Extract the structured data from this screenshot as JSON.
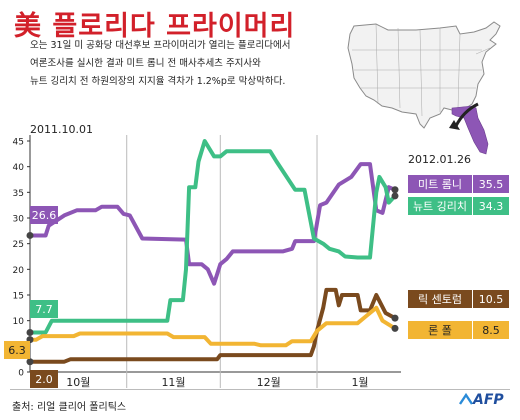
{
  "header": {
    "title": "美 플로리다 프라이머리"
  },
  "description": {
    "lines": [
      "오는 31일 미 공화당 대선후보 프라이머리가 열리는 플로리다에서",
      "여론조사를 실시한 결과 미트 롬니 전 매사추세츠 주지사와",
      "뉴트 깅리치 전 하원의장의 지지율 격차가 1.2%p로 막상막하다."
    ]
  },
  "map": {
    "icon": "us-map-florida-highlighted",
    "highlight_color": "#8d56b5",
    "arrow_icon": "curved-arrow-icon"
  },
  "footer": {
    "source": "출처: 리얼 클리어 폴리틱스",
    "logo": "AFP"
  },
  "colors": {
    "romney": "#8d56b5",
    "gingrich": "#3ebf86",
    "santorum": "#7a4a1e",
    "paul": "#f2b533",
    "grid": "#bbbbbb"
  },
  "chart_data": {
    "type": "line",
    "title": "",
    "xlabel": "",
    "ylabel": "",
    "ylim": [
      0,
      45
    ],
    "yticks": [
      "0",
      "5",
      "10",
      "15",
      "20",
      "25",
      "30",
      "35",
      "40",
      "45"
    ],
    "x_range": [
      "2011-10-01",
      "2012-01-26"
    ],
    "x_month_labels": [
      "10월",
      "11월",
      "12월",
      "1월"
    ],
    "start_date_label": "2011.10.01",
    "end_date_label": "2012.01.26",
    "grid": "vertical month separators",
    "legend": "end labels on right",
    "series": [
      {
        "name": "미트 롬니",
        "color_key": "romney",
        "start_label": "26.6",
        "end_label": "35.5",
        "points": [
          [
            "2011-10-01",
            26.6
          ],
          [
            "2011-10-06",
            26.6
          ],
          [
            "2011-10-07",
            28.5
          ],
          [
            "2011-10-12",
            30.5
          ],
          [
            "2011-10-16",
            31.5
          ],
          [
            "2011-10-22",
            31.5
          ],
          [
            "2011-10-24",
            32.2
          ],
          [
            "2011-10-29",
            32.2
          ],
          [
            "2011-10-31",
            30.8
          ],
          [
            "2011-11-02",
            30.5
          ],
          [
            "2011-11-06",
            26.0
          ],
          [
            "2011-11-20",
            25.8
          ],
          [
            "2011-11-21",
            21.0
          ],
          [
            "2011-11-25",
            21.0
          ],
          [
            "2011-11-27",
            20.0
          ],
          [
            "2011-11-29",
            17.2
          ],
          [
            "2011-12-01",
            21.0
          ],
          [
            "2011-12-03",
            22.0
          ],
          [
            "2011-12-05",
            23.5
          ],
          [
            "2011-12-11",
            23.5
          ],
          [
            "2011-12-21",
            23.5
          ],
          [
            "2011-12-24",
            24.0
          ],
          [
            "2011-12-25",
            25.5
          ],
          [
            "2011-12-31",
            25.5
          ],
          [
            "2012-01-02",
            32.5
          ],
          [
            "2012-01-04",
            33.0
          ],
          [
            "2012-01-08",
            36.5
          ],
          [
            "2012-01-12",
            38.0
          ],
          [
            "2012-01-15",
            40.5
          ],
          [
            "2012-01-18",
            40.5
          ],
          [
            "2012-01-20",
            31.5
          ],
          [
            "2012-01-22",
            31.0
          ],
          [
            "2012-01-24",
            36.0
          ],
          [
            "2012-01-26",
            35.5
          ]
        ]
      },
      {
        "name": "뉴트 깅리치",
        "color_key": "gingrich",
        "start_label": "7.7",
        "end_label": "34.3",
        "points": [
          [
            "2011-10-01",
            7.7
          ],
          [
            "2011-10-06",
            7.7
          ],
          [
            "2011-10-08",
            10.0
          ],
          [
            "2011-10-31",
            10.0
          ],
          [
            "2011-11-02",
            10.0
          ],
          [
            "2011-11-09",
            10.0
          ],
          [
            "2011-11-14",
            10.0
          ],
          [
            "2011-11-15",
            14.0
          ],
          [
            "2011-11-19",
            14.0
          ],
          [
            "2011-11-20",
            20.0
          ],
          [
            "2011-11-21",
            36.0
          ],
          [
            "2011-11-23",
            36.0
          ],
          [
            "2011-11-24",
            41.0
          ],
          [
            "2011-11-26",
            45.0
          ],
          [
            "2011-11-29",
            42.0
          ],
          [
            "2011-12-01",
            42.0
          ],
          [
            "2011-12-03",
            43.0
          ],
          [
            "2011-12-17",
            43.0
          ],
          [
            "2011-12-19",
            41.0
          ],
          [
            "2011-12-25",
            35.5
          ],
          [
            "2011-12-28",
            35.5
          ],
          [
            "2011-12-31",
            26.0
          ],
          [
            "2012-01-03",
            25.0
          ],
          [
            "2012-01-05",
            24.0
          ],
          [
            "2012-01-08",
            23.5
          ],
          [
            "2012-01-10",
            22.5
          ],
          [
            "2012-01-14",
            22.3
          ],
          [
            "2012-01-18",
            22.3
          ],
          [
            "2012-01-20",
            35.0
          ],
          [
            "2012-01-21",
            38.0
          ],
          [
            "2012-01-23",
            36.0
          ],
          [
            "2012-01-24",
            33.0
          ],
          [
            "2012-01-26",
            34.3
          ]
        ]
      },
      {
        "name": "릭 센토럼",
        "color_key": "santorum",
        "start_label": "2.0",
        "end_label": "10.5",
        "points": [
          [
            "2011-10-01",
            2.0
          ],
          [
            "2011-10-12",
            2.0
          ],
          [
            "2011-10-14",
            2.5
          ],
          [
            "2011-11-12",
            2.5
          ],
          [
            "2011-11-30",
            2.5
          ],
          [
            "2011-12-01",
            3.3
          ],
          [
            "2011-12-18",
            3.3
          ],
          [
            "2011-12-30",
            3.3
          ],
          [
            "2011-12-31",
            5.0
          ],
          [
            "2012-01-01",
            8.0
          ],
          [
            "2012-01-03",
            12.5
          ],
          [
            "2012-01-04",
            16.0
          ],
          [
            "2012-01-07",
            16.0
          ],
          [
            "2012-01-08",
            13.0
          ],
          [
            "2012-01-09",
            15.0
          ],
          [
            "2012-01-14",
            15.0
          ],
          [
            "2012-01-15",
            12.0
          ],
          [
            "2012-01-18",
            12.0
          ],
          [
            "2012-01-20",
            15.0
          ],
          [
            "2012-01-23",
            11.5
          ],
          [
            "2012-01-26",
            10.5
          ]
        ]
      },
      {
        "name": "론 폴",
        "color_key": "paul",
        "start_label": "6.3",
        "end_label": "8.5",
        "points": [
          [
            "2011-10-01",
            6.3
          ],
          [
            "2011-10-03",
            6.3
          ],
          [
            "2011-10-05",
            7.0
          ],
          [
            "2011-10-15",
            7.0
          ],
          [
            "2011-10-17",
            7.5
          ],
          [
            "2011-11-14",
            7.5
          ],
          [
            "2011-11-16",
            6.8
          ],
          [
            "2011-11-26",
            6.8
          ],
          [
            "2011-11-28",
            5.5
          ],
          [
            "2011-12-12",
            5.5
          ],
          [
            "2011-12-14",
            5.2
          ],
          [
            "2011-12-22",
            5.2
          ],
          [
            "2011-12-24",
            6.0
          ],
          [
            "2011-12-30",
            6.0
          ],
          [
            "2012-01-01",
            8.0
          ],
          [
            "2012-01-04",
            9.5
          ],
          [
            "2012-01-14",
            9.5
          ],
          [
            "2012-01-17",
            11.0
          ],
          [
            "2012-01-20",
            12.5
          ],
          [
            "2012-01-22",
            10.0
          ],
          [
            "2012-01-26",
            8.5
          ]
        ]
      }
    ]
  }
}
